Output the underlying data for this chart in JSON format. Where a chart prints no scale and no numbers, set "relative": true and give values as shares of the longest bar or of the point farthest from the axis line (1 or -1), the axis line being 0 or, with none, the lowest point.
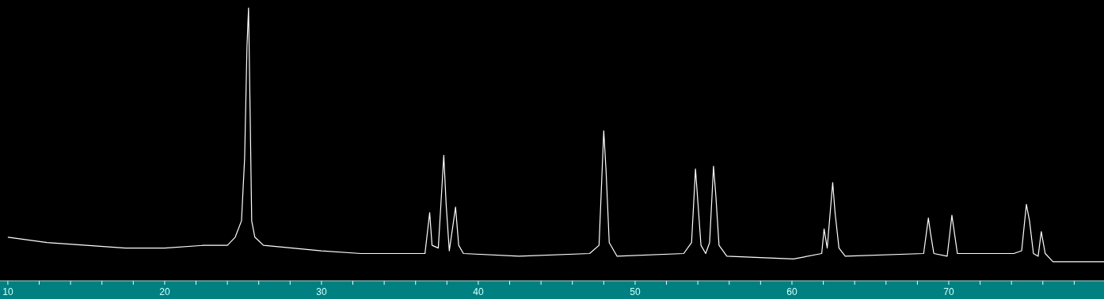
{
  "chart_data": {
    "type": "line",
    "relative": true,
    "marker": "none",
    "line_style": "solid",
    "xlim": [
      9.5,
      79.9
    ],
    "xticks": [
      {
        "value": 10,
        "label": "10"
      },
      {
        "value": 12,
        "label": null
      },
      {
        "value": 14,
        "label": null
      },
      {
        "value": 16,
        "label": null
      },
      {
        "value": 18,
        "label": null
      },
      20,
      {
        "value": 22,
        "label": null
      },
      {
        "value": 24,
        "label": null
      },
      {
        "value": 26,
        "label": null
      },
      {
        "value": 28,
        "label": null
      },
      30,
      {
        "value": 32,
        "label": null
      },
      {
        "value": 34,
        "label": null
      },
      {
        "value": 36,
        "label": null
      },
      {
        "value": 38,
        "label": null
      },
      40,
      {
        "value": 42,
        "label": null
      },
      {
        "value": 44,
        "label": null
      },
      {
        "value": 46,
        "label": null
      },
      {
        "value": 48,
        "label": null
      },
      50,
      {
        "value": 52,
        "label": null
      },
      {
        "value": 54,
        "label": null
      },
      {
        "value": 56,
        "label": null
      },
      {
        "value": 58,
        "label": null
      },
      60,
      {
        "value": 62,
        "label": null
      },
      {
        "value": 64,
        "label": null
      },
      {
        "value": 66,
        "label": null
      },
      {
        "value": 68,
        "label": null
      },
      70,
      {
        "value": 72,
        "label": null
      },
      {
        "value": 74,
        "label": null
      },
      {
        "value": 76,
        "label": null
      },
      {
        "value": 78,
        "label": null
      }
    ],
    "series": [
      {
        "color": "#ffffff",
        "x": [
          10.0,
          12.5,
          15.0,
          17.5,
          20.0,
          22.5,
          24.0,
          24.5,
          24.9,
          25.1,
          25.25,
          25.35,
          25.45,
          25.55,
          25.75,
          26.3,
          30.0,
          32.5,
          35.0,
          36.6,
          36.9,
          37.05,
          37.45,
          37.8,
          37.95,
          38.15,
          38.55,
          38.75,
          39.05,
          42.6,
          47.1,
          47.7,
          48.0,
          48.15,
          48.35,
          48.85,
          53.1,
          53.6,
          53.85,
          54.0,
          54.2,
          54.5,
          54.75,
          55.0,
          55.15,
          55.35,
          55.85,
          60.1,
          61.9,
          62.05,
          62.25,
          62.6,
          62.75,
          63.0,
          63.4,
          68.4,
          68.7,
          68.85,
          69.05,
          69.9,
          70.2,
          70.35,
          70.55,
          74.15,
          74.65,
          74.95,
          75.15,
          75.4,
          75.7,
          75.9,
          76.15,
          76.65,
          79.9
        ],
        "values": [
          0.16,
          0.14,
          0.13,
          0.12,
          0.12,
          0.13,
          0.13,
          0.16,
          0.22,
          0.45,
          0.86,
          1,
          0.62,
          0.22,
          0.16,
          0.13,
          0.11,
          0.1,
          0.1,
          0.1,
          0.25,
          0.13,
          0.12,
          0.46,
          0.28,
          0.11,
          0.27,
          0.13,
          0.1,
          0.09,
          0.1,
          0.13,
          0.55,
          0.4,
          0.14,
          0.09,
          0.1,
          0.14,
          0.41,
          0.29,
          0.13,
          0.1,
          0.14,
          0.42,
          0.31,
          0.13,
          0.09,
          0.08,
          0.1,
          0.19,
          0.12,
          0.36,
          0.25,
          0.12,
          0.09,
          0.1,
          0.23,
          0.17,
          0.1,
          0.09,
          0.24,
          0.18,
          0.1,
          0.1,
          0.11,
          0.28,
          0.22,
          0.1,
          0.09,
          0.18,
          0.1,
          0.07,
          0.07
        ]
      }
    ]
  }
}
